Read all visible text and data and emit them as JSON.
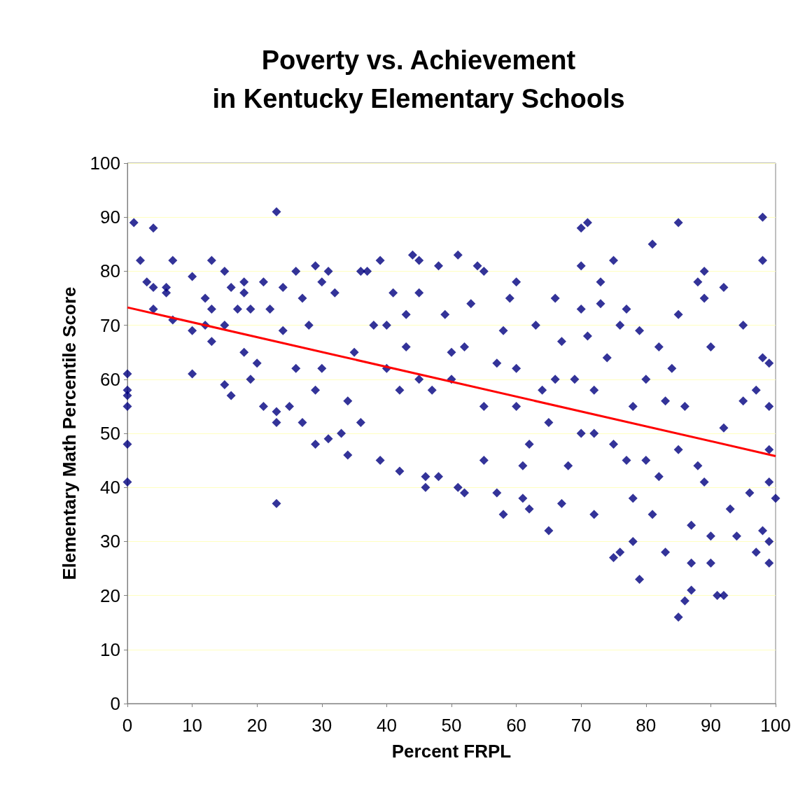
{
  "chart_data": {
    "type": "scatter",
    "title": "Poverty vs. Achievement\nin Kentucky Elementary Schools",
    "xlabel": "Percent FRPL",
    "ylabel": "Elementary Math Percentile Score",
    "xlim": [
      0,
      100
    ],
    "ylim": [
      0,
      100
    ],
    "xticks": [
      0,
      10,
      20,
      30,
      40,
      50,
      60,
      70,
      80,
      90,
      100
    ],
    "yticks": [
      0,
      10,
      20,
      30,
      40,
      50,
      60,
      70,
      80,
      90,
      100
    ],
    "grid": "y",
    "series": [
      {
        "color": "#000080",
        "marker": "diamond",
        "x": [
          0,
          0,
          0,
          0,
          0,
          0,
          1,
          2,
          3,
          4,
          4,
          4,
          6,
          6,
          7,
          7,
          10,
          10,
          10,
          12,
          12,
          13,
          13,
          13,
          15,
          15,
          15,
          16,
          16,
          17,
          18,
          18,
          18,
          19,
          19,
          20,
          21,
          21,
          22,
          23,
          23,
          23,
          23,
          24,
          24,
          25,
          26,
          26,
          27,
          27,
          28,
          29,
          29,
          29,
          30,
          30,
          31,
          31,
          32,
          33,
          34,
          34,
          36,
          37,
          36,
          39,
          39,
          40,
          41,
          42,
          42,
          43,
          44,
          45,
          45,
          46,
          46,
          48,
          48,
          49,
          50,
          51,
          51,
          52,
          53,
          54,
          55,
          55,
          57,
          58,
          58,
          59,
          60,
          60,
          61,
          61,
          62,
          63,
          64,
          65,
          66,
          67,
          67,
          68,
          69,
          70,
          70,
          70,
          71,
          71,
          72,
          72,
          73,
          73,
          74,
          75,
          75,
          76,
          76,
          77,
          77,
          78,
          78,
          79,
          79,
          80,
          81,
          81,
          82,
          82,
          83,
          84,
          85,
          85,
          85,
          86,
          86,
          87,
          87,
          87,
          88,
          89,
          89,
          89,
          90,
          90,
          90,
          91,
          92,
          92,
          92,
          93,
          94,
          95,
          95,
          96,
          97,
          97,
          98,
          98,
          98,
          98,
          99,
          99,
          99,
          99,
          99,
          99,
          100,
          50,
          55,
          60,
          65,
          45,
          40,
          35,
          70,
          75,
          80,
          85,
          88,
          62,
          57,
          52,
          47,
          43,
          38,
          66,
          72,
          78,
          83
        ],
        "values": [
          61,
          58,
          57,
          55,
          48,
          41,
          89,
          82,
          78,
          88,
          77,
          73,
          77,
          76,
          82,
          71,
          79,
          69,
          61,
          75,
          70,
          67,
          82,
          73,
          80,
          70,
          59,
          77,
          57,
          73,
          78,
          76,
          65,
          60,
          73,
          63,
          78,
          55,
          73,
          91,
          37,
          52,
          54,
          77,
          69,
          55,
          80,
          62,
          75,
          52,
          70,
          81,
          58,
          48,
          78,
          62,
          80,
          49,
          76,
          50,
          46,
          56,
          80,
          80,
          52,
          82,
          45,
          70,
          76,
          43,
          58,
          72,
          83,
          82,
          76,
          40,
          42,
          81,
          42,
          72,
          65,
          83,
          40,
          39,
          74,
          81,
          80,
          45,
          39,
          35,
          69,
          75,
          78,
          62,
          38,
          44,
          36,
          70,
          58,
          32,
          75,
          37,
          67,
          44,
          60,
          88,
          81,
          73,
          89,
          68,
          35,
          50,
          78,
          74,
          64,
          27,
          82,
          28,
          70,
          73,
          45,
          30,
          38,
          23,
          69,
          60,
          85,
          35,
          66,
          42,
          28,
          62,
          89,
          16,
          72,
          19,
          55,
          21,
          26,
          33,
          78,
          80,
          75,
          41,
          26,
          31,
          66,
          20,
          20,
          77,
          51,
          36,
          31,
          70,
          56,
          39,
          28,
          58,
          90,
          82,
          64,
          32,
          26,
          30,
          55,
          63,
          41,
          47,
          38,
          60,
          55,
          55,
          52,
          60,
          62,
          65,
          50,
          48,
          45,
          47,
          44,
          48,
          63,
          66,
          58,
          66,
          70,
          60,
          58,
          55,
          56
        ]
      },
      {
        "type": "line",
        "marker": "none",
        "color": "#ff0000",
        "x": [
          0,
          100
        ],
        "values": [
          73.3,
          45.8
        ]
      }
    ]
  }
}
